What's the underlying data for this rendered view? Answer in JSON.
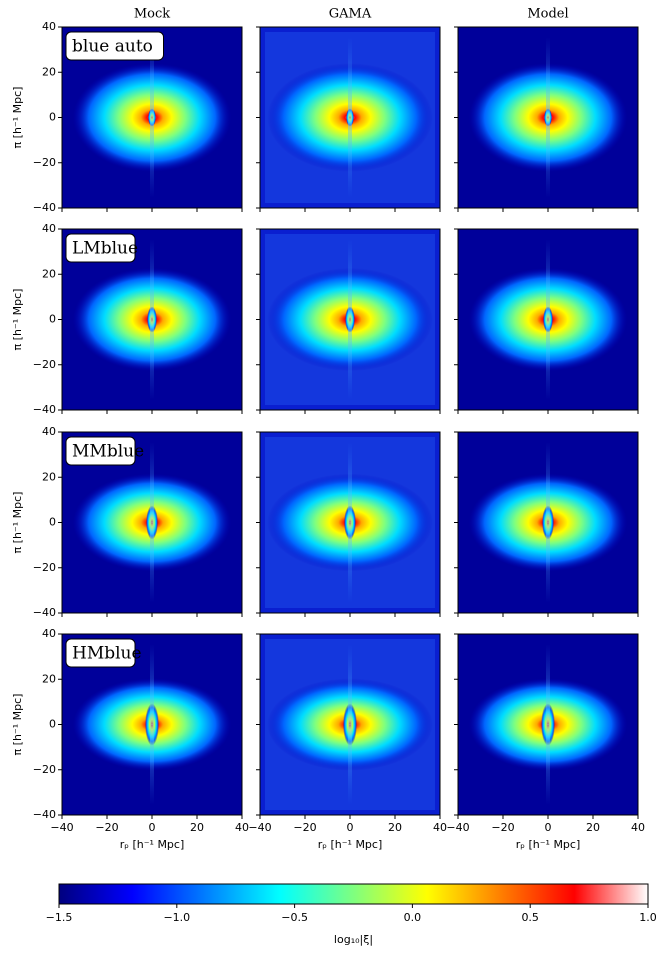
{
  "chart_data": {
    "type": "heatmap",
    "columns": [
      "Mock",
      "GAMA",
      "Model"
    ],
    "rows": [
      "blue auto",
      "LMblue",
      "MMblue",
      "HMblue"
    ],
    "x_label": "rₚ [h⁻¹ Mpc]",
    "y_label": "π [h⁻¹ Mpc]",
    "xlim": [
      -40,
      40
    ],
    "xticks": [
      {
        "value": -40,
        "label": "−40"
      },
      {
        "value": -20,
        "label": "−20"
      },
      0,
      20,
      40
    ],
    "ylim": [
      -40,
      40
    ],
    "yticks": [
      {
        "value": -40,
        "label": "−40"
      },
      {
        "value": -20,
        "label": "−20"
      },
      0,
      20,
      40
    ],
    "colorbar": {
      "label": "log₁₀|ξ|",
      "lim": [
        -1.5,
        1.0
      ],
      "ticks": [
        {
          "value": -1.5,
          "label": "−1.5"
        },
        {
          "value": -1.0,
          "label": "−1.0"
        },
        {
          "value": -0.5,
          "label": "−0.5"
        },
        {
          "value": 0.0,
          "label": "0.0"
        },
        0.5,
        {
          "value": 1.0,
          "label": "1.0"
        }
      ],
      "colormap": [
        "#00007f",
        "#0000ff",
        "#007fff",
        "#00ffff",
        "#7fff7f",
        "#ffff00",
        "#ff7f00",
        "#ff0000",
        "#ffffff"
      ]
    }
  }
}
